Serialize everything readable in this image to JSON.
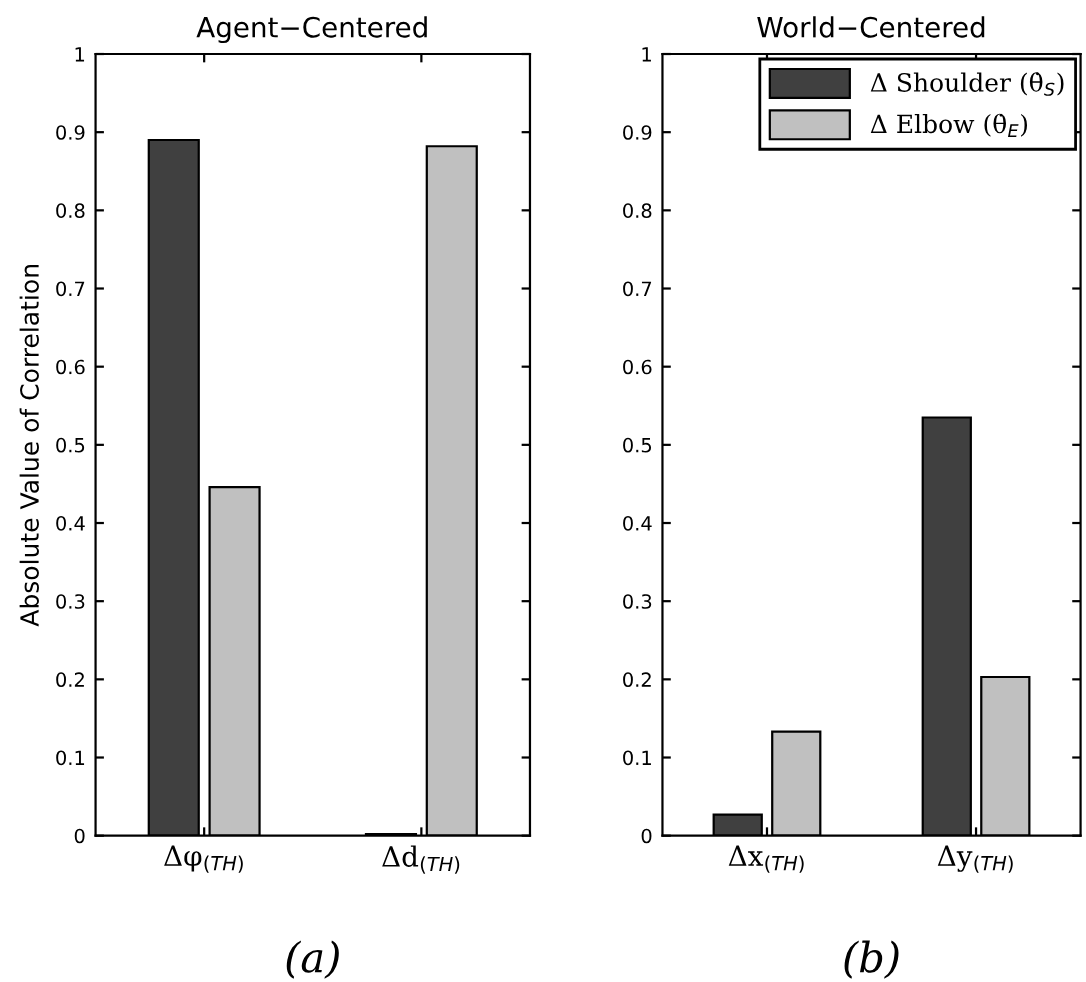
{
  "chart_data": [
    {
      "type": "bar",
      "title": "Agent−Centered",
      "ylabel": "Absolute Value of Correlation",
      "categories": [
        "Δφ$_{(TH)}$",
        "Δd$_{(TH)}$"
      ],
      "series": [
        {
          "color": "#404040",
          "values": [
            0.89,
            0.002
          ]
        },
        {
          "color": "#c0c0c0",
          "values": [
            0.446,
            0.882
          ]
        }
      ],
      "ylim": [
        0,
        1
      ],
      "yticks": [
        0,
        0.1,
        0.2,
        0.3,
        0.4,
        0.5,
        0.6,
        0.7,
        0.8,
        0.9,
        1
      ],
      "grid": false,
      "legend": false,
      "annotations": [
        "(a)"
      ]
    },
    {
      "type": "bar",
      "title": "World−Centered",
      "categories": [
        "Δx$_{(TH)}$",
        "Δy$_{(TH)}$"
      ],
      "series": [
        {
          "name": "Δ Shoulder (θ̇$_{S}$)",
          "color": "#404040",
          "values": [
            0.027,
            0.535
          ]
        },
        {
          "name": "Δ Elbow (θ̇$_{E}$)",
          "color": "#c0c0c0",
          "values": [
            0.133,
            0.203
          ]
        }
      ],
      "ylim": [
        0,
        1
      ],
      "yticks": [
        0,
        0.1,
        0.2,
        0.3,
        0.4,
        0.5,
        0.6,
        0.7,
        0.8,
        0.9,
        1
      ],
      "grid": false,
      "legend": "top right",
      "annotations": [
        "(b)"
      ]
    }
  ]
}
